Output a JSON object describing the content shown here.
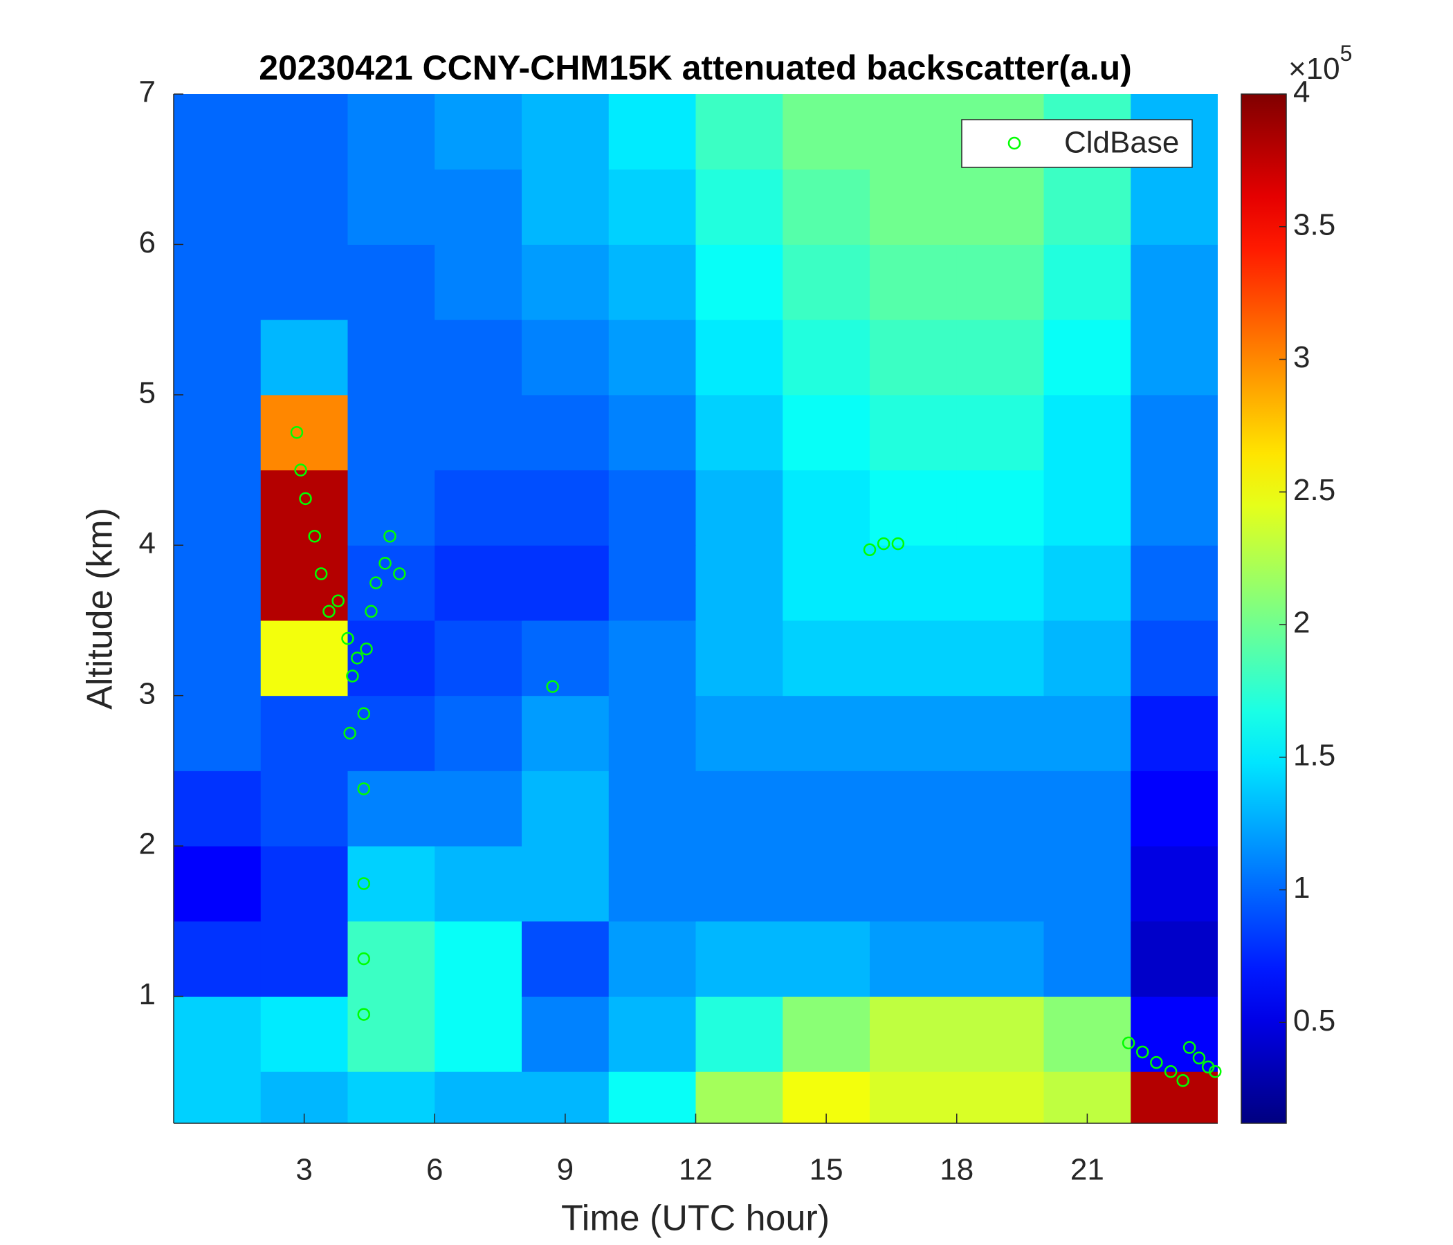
{
  "chart_data": {
    "type": "heatmap",
    "title": "20230421 CCNY-CHM15K attenuated backscatter(a.u)",
    "x_label": "Time (UTC hour)",
    "y_label": "Altitude (km)",
    "xlim": [
      0,
      24
    ],
    "ylim": [
      0.156,
      7
    ],
    "xticks": [
      3,
      6,
      9,
      12,
      15,
      18,
      21
    ],
    "yticks": [
      1,
      2,
      3,
      4,
      5,
      6,
      7
    ],
    "colormap": "jet",
    "clim": [
      0.12,
      4
    ],
    "cticks": [
      0.5,
      1,
      1.5,
      2,
      2.5,
      3,
      3.5,
      4
    ],
    "colorbar_multiplier": "×10",
    "colorbar_exponent": "5",
    "x_edges": [
      0,
      2,
      4,
      6,
      8,
      10,
      12,
      14,
      16,
      18,
      20,
      22,
      24
    ],
    "y_edges": [
      0.156,
      0.5,
      1,
      1.5,
      2,
      2.5,
      3,
      3.5,
      4,
      4.5,
      5,
      5.5,
      6,
      6.5,
      7
    ],
    "z": [
      [
        1.4,
        1.3,
        1.4,
        1.3,
        1.3,
        1.6,
        2.2,
        2.5,
        2.4,
        2.4,
        2.3,
        3.8
      ],
      [
        1.4,
        1.5,
        1.8,
        1.6,
        1.1,
        1.3,
        1.7,
        2.1,
        2.3,
        2.3,
        2.1,
        0.6
      ],
      [
        0.8,
        0.8,
        1.8,
        1.6,
        0.9,
        1.2,
        1.3,
        1.3,
        1.2,
        1.2,
        1.1,
        0.4
      ],
      [
        0.6,
        0.8,
        1.4,
        1.3,
        1.3,
        1.1,
        1.1,
        1.1,
        1.1,
        1.1,
        1.1,
        0.5
      ],
      [
        0.8,
        0.9,
        1.1,
        1.1,
        1.3,
        1.1,
        1.1,
        1.1,
        1.1,
        1.1,
        1.1,
        0.6
      ],
      [
        1.0,
        0.9,
        0.9,
        1.0,
        1.2,
        1.1,
        1.2,
        1.2,
        1.2,
        1.2,
        1.2,
        0.7
      ],
      [
        1.0,
        2.5,
        0.8,
        0.9,
        1.0,
        1.1,
        1.3,
        1.4,
        1.4,
        1.4,
        1.3,
        0.9
      ],
      [
        1.0,
        3.8,
        0.9,
        0.8,
        0.8,
        1.0,
        1.3,
        1.5,
        1.5,
        1.5,
        1.4,
        1.0
      ],
      [
        1.0,
        3.8,
        1.0,
        0.9,
        0.9,
        1.0,
        1.3,
        1.5,
        1.6,
        1.6,
        1.5,
        1.1
      ],
      [
        1.0,
        3.0,
        1.0,
        1.0,
        1.0,
        1.1,
        1.4,
        1.6,
        1.7,
        1.7,
        1.5,
        1.1
      ],
      [
        1.0,
        1.3,
        1.0,
        1.0,
        1.1,
        1.2,
        1.5,
        1.7,
        1.8,
        1.8,
        1.6,
        1.2
      ],
      [
        1.0,
        1.0,
        1.0,
        1.1,
        1.2,
        1.3,
        1.6,
        1.8,
        1.9,
        1.9,
        1.7,
        1.2
      ],
      [
        1.0,
        1.0,
        1.1,
        1.1,
        1.3,
        1.4,
        1.7,
        1.9,
        2.0,
        2.0,
        1.8,
        1.3
      ],
      [
        1.0,
        1.0,
        1.1,
        1.2,
        1.3,
        1.5,
        1.8,
        2.0,
        2.0,
        2.0,
        1.8,
        1.3
      ]
    ],
    "legend": "upper right",
    "series": [
      {
        "type": "scatter",
        "name": "CldBase",
        "color": "#00ff00",
        "x": [
          2.83,
          2.92,
          3.03,
          3.24,
          3.39,
          3.57,
          3.78,
          4.0,
          4.11,
          4.05,
          4.22,
          4.37,
          4.37,
          4.37,
          4.37,
          4.37,
          4.43,
          4.54,
          4.65,
          4.86,
          4.97,
          5.19,
          8.71,
          16.0,
          16.32,
          16.65,
          21.95,
          22.27,
          22.59,
          22.92,
          23.2,
          23.35,
          23.57,
          23.78,
          23.94
        ],
        "y": [
          4.75,
          4.5,
          4.31,
          4.06,
          3.81,
          3.56,
          3.63,
          3.38,
          3.13,
          2.75,
          3.25,
          2.88,
          2.38,
          1.75,
          1.25,
          0.88,
          3.31,
          3.56,
          3.75,
          3.88,
          4.06,
          3.81,
          3.06,
          3.97,
          4.01,
          4.01,
          0.69,
          0.63,
          0.56,
          0.5,
          0.44,
          0.66,
          0.59,
          0.53,
          0.5
        ]
      }
    ]
  }
}
